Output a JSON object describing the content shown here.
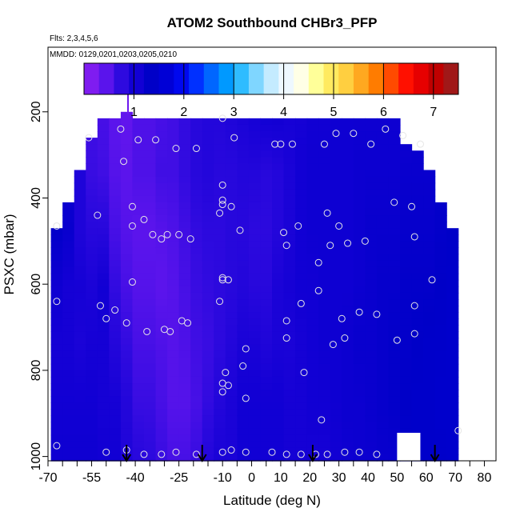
{
  "chart_data": {
    "type": "heatmap",
    "title": "ATOM2 Southbound CHBr3_PFP",
    "annotations": [
      "Flts: 2,3,4,5,6",
      "MMDD: 0129,0201,0203,0205,0210"
    ],
    "xlabel": "Latitude (deg N)",
    "ylabel": "PSXC (mbar)",
    "xlim": [
      -70,
      84
    ],
    "ylim": [
      1010,
      50
    ],
    "x_ticks": [
      -70,
      -55,
      -40,
      -25,
      -10,
      0,
      10,
      20,
      30,
      40,
      50,
      60,
      70,
      80
    ],
    "x_tick_labels": [
      "-70",
      "-55",
      "-40",
      "-25",
      "-10",
      "0",
      "10",
      "20",
      "30",
      "40",
      "50",
      "60",
      "70",
      "80"
    ],
    "x_minor_ticks": [
      -65,
      -60,
      -50,
      -45,
      -35,
      -30,
      -20,
      -15,
      -5,
      5,
      15,
      25,
      35,
      45,
      55,
      65,
      75
    ],
    "y_ticks": [
      200,
      400,
      600,
      800,
      1000
    ],
    "y_tick_labels": [
      "200",
      "400",
      "600",
      "800",
      "1000"
    ],
    "colorbar": {
      "range": [
        0,
        7.5
      ],
      "ticks": [
        1,
        2,
        3,
        4,
        5,
        6,
        7
      ],
      "tick_labels": [
        "1",
        "2",
        "3",
        "4",
        "5",
        "6",
        "7"
      ],
      "colors": [
        "#7f1cf0",
        "#5a14ec",
        "#2e0adf",
        "#1200d4",
        "#0000c8",
        "#0000d6",
        "#0008ee",
        "#0030ff",
        "#0066ff",
        "#0099ff",
        "#2fbcff",
        "#7fd6ff",
        "#c4ebff",
        "#eef8ff",
        "#ffffe6",
        "#ffff99",
        "#ffea60",
        "#ffcf40",
        "#ffa820",
        "#ff7c00",
        "#ff4a00",
        "#ff1000",
        "#e60000",
        "#c00000",
        "#a01818"
      ]
    },
    "profiles": [
      {
        "lat": -67,
        "top": 465,
        "values": [
          1.3,
          1.1,
          1.2,
          1.0,
          0.9,
          0.95,
          1.0
        ]
      },
      {
        "lat": -63,
        "top": 400,
        "values": [
          1.2,
          1.0,
          1.1,
          0.9,
          0.9,
          0.95,
          1.0
        ]
      },
      {
        "lat": -59,
        "top": 330,
        "values": [
          1.1,
          0.8,
          0.8,
          0.9,
          0.85,
          0.95,
          1.0
        ]
      },
      {
        "lat": -55,
        "top": 255,
        "values": [
          0.5,
          0.55,
          0.7,
          0.85,
          0.9,
          0.95,
          1.0
        ]
      },
      {
        "lat": -51,
        "top": 215,
        "values": [
          0.45,
          0.5,
          0.7,
          0.95,
          0.9,
          0.9,
          0.95
        ]
      },
      {
        "lat": -47,
        "top": 215,
        "values": [
          0.3,
          0.35,
          0.45,
          0.6,
          0.75,
          0.9,
          0.95
        ]
      },
      {
        "lat": -43,
        "top": 200,
        "values": [
          0.25,
          0.3,
          0.35,
          0.45,
          0.6,
          0.75,
          0.8
        ]
      },
      {
        "lat": -39,
        "top": 215,
        "values": [
          0.4,
          0.4,
          0.3,
          0.35,
          0.45,
          0.55,
          0.7
        ]
      },
      {
        "lat": -35,
        "top": 215,
        "values": [
          0.4,
          0.4,
          0.3,
          0.35,
          0.45,
          0.55,
          0.65
        ]
      },
      {
        "lat": -31,
        "top": 215,
        "values": [
          0.45,
          0.5,
          0.35,
          0.3,
          0.4,
          0.45,
          0.55
        ]
      },
      {
        "lat": -27,
        "top": 215,
        "values": [
          0.5,
          0.5,
          0.4,
          0.35,
          0.35,
          0.35,
          0.45
        ]
      },
      {
        "lat": -23,
        "top": 215,
        "values": [
          0.6,
          0.6,
          0.5,
          0.45,
          0.4,
          0.35,
          0.45
        ]
      },
      {
        "lat": -19,
        "top": 215,
        "values": [
          0.7,
          0.7,
          0.6,
          0.55,
          0.5,
          0.45,
          0.55
        ]
      },
      {
        "lat": -15,
        "top": 215,
        "values": [
          0.75,
          0.75,
          0.65,
          0.6,
          0.55,
          0.6,
          0.75
        ]
      },
      {
        "lat": -11,
        "top": 215,
        "values": [
          0.75,
          0.7,
          0.65,
          0.65,
          0.65,
          0.75,
          0.85
        ]
      },
      {
        "lat": -7,
        "top": 215,
        "values": [
          0.8,
          0.7,
          0.7,
          0.7,
          0.75,
          0.85,
          0.85
        ]
      },
      {
        "lat": -3,
        "top": 215,
        "values": [
          0.85,
          0.75,
          0.7,
          0.75,
          0.85,
          0.95,
          0.95
        ]
      },
      {
        "lat": 1,
        "top": 215,
        "values": [
          0.9,
          0.75,
          0.65,
          0.7,
          0.85,
          0.95,
          0.95
        ]
      },
      {
        "lat": 5,
        "top": 215,
        "values": [
          0.95,
          0.7,
          0.65,
          0.7,
          0.8,
          0.95,
          0.95
        ]
      },
      {
        "lat": 9,
        "top": 215,
        "values": [
          0.95,
          0.75,
          0.75,
          0.85,
          0.85,
          0.95,
          0.95
        ]
      },
      {
        "lat": 13,
        "top": 215,
        "values": [
          0.9,
          0.85,
          0.85,
          0.9,
          0.85,
          0.9,
          0.9
        ]
      },
      {
        "lat": 17,
        "top": 215,
        "values": [
          0.9,
          0.95,
          0.95,
          0.95,
          0.9,
          0.9,
          0.9
        ]
      },
      {
        "lat": 21,
        "top": 215,
        "values": [
          0.95,
          1.0,
          1.0,
          0.95,
          0.95,
          0.95,
          0.9
        ]
      },
      {
        "lat": 25,
        "top": 215,
        "values": [
          0.95,
          1.0,
          1.0,
          1.0,
          1.0,
          0.95,
          0.9
        ]
      },
      {
        "lat": 29,
        "top": 215,
        "values": [
          1.0,
          1.0,
          1.0,
          1.0,
          1.0,
          1.0,
          0.95
        ]
      },
      {
        "lat": 33,
        "top": 215,
        "values": [
          1.0,
          1.0,
          1.0,
          1.0,
          1.05,
          1.05,
          1.0
        ]
      },
      {
        "lat": 37,
        "top": 215,
        "values": [
          1.0,
          1.05,
          1.05,
          1.05,
          1.1,
          1.05,
          1.05
        ]
      },
      {
        "lat": 41,
        "top": 215,
        "values": [
          1.0,
          1.05,
          1.1,
          1.1,
          1.1,
          1.1,
          1.05
        ]
      },
      {
        "lat": 45,
        "top": 215,
        "values": [
          1.0,
          1.05,
          1.1,
          1.15,
          1.15,
          1.15,
          1.1
        ]
      },
      {
        "lat": 49,
        "top": 215,
        "values": [
          1.0,
          1.05,
          1.1,
          1.15,
          1.2,
          1.2,
          1.1
        ]
      },
      {
        "lat": 53,
        "top": 265,
        "values": [
          1.0,
          1.1,
          1.15,
          1.2,
          1.2,
          1.25,
          1.2
        ]
      },
      {
        "lat": 57,
        "top": 280,
        "values": [
          1.1,
          1.1,
          1.15,
          1.2,
          1.25,
          1.3,
          1.3
        ]
      },
      {
        "lat": 61,
        "top": 330,
        "values": [
          1.1,
          1.1,
          1.15,
          1.2,
          1.3,
          1.3,
          1.3
        ]
      },
      {
        "lat": 65,
        "top": 400,
        "values": [
          1.2,
          1.2,
          1.2,
          1.25,
          1.3,
          1.35,
          1.3
        ]
      },
      {
        "lat": 69,
        "top": 465,
        "values": [
          1.2,
          1.2,
          1.25,
          1.3,
          1.35,
          1.35,
          1.35
        ]
      }
    ],
    "missing_region": {
      "lat": [
        50,
        58
      ],
      "p": [
        945,
        1010
      ]
    },
    "spike": {
      "lat": -42.5,
      "p": [
        155,
        205
      ],
      "value": 0.15
    },
    "sample_points": [
      {
        "lat": -67,
        "p": 465
      },
      {
        "lat": -67,
        "p": 640
      },
      {
        "lat": -67,
        "p": 975
      },
      {
        "lat": -56,
        "p": 260
      },
      {
        "lat": -53,
        "p": 440
      },
      {
        "lat": -52,
        "p": 650
      },
      {
        "lat": -50,
        "p": 680
      },
      {
        "lat": -47,
        "p": 660
      },
      {
        "lat": -45,
        "p": 240
      },
      {
        "lat": -44,
        "p": 315
      },
      {
        "lat": -43,
        "p": 690
      },
      {
        "lat": -41,
        "p": 420
      },
      {
        "lat": -41,
        "p": 465
      },
      {
        "lat": -41,
        "p": 595
      },
      {
        "lat": -39,
        "p": 265
      },
      {
        "lat": -37,
        "p": 450
      },
      {
        "lat": -36,
        "p": 710
      },
      {
        "lat": -34,
        "p": 485
      },
      {
        "lat": -33,
        "p": 265
      },
      {
        "lat": -31,
        "p": 495
      },
      {
        "lat": -30,
        "p": 705
      },
      {
        "lat": -29,
        "p": 485
      },
      {
        "lat": -28,
        "p": 710
      },
      {
        "lat": -26,
        "p": 285
      },
      {
        "lat": -25,
        "p": 485
      },
      {
        "lat": -24,
        "p": 685
      },
      {
        "lat": -22,
        "p": 690
      },
      {
        "lat": -21,
        "p": 495
      },
      {
        "lat": -19,
        "p": 285
      },
      {
        "lat": -11,
        "p": 640
      },
      {
        "lat": -11,
        "p": 435
      },
      {
        "lat": -10,
        "p": 215
      },
      {
        "lat": -10,
        "p": 370
      },
      {
        "lat": -10,
        "p": 405
      },
      {
        "lat": -10,
        "p": 415
      },
      {
        "lat": -10,
        "p": 585
      },
      {
        "lat": -10,
        "p": 590
      },
      {
        "lat": -10,
        "p": 830
      },
      {
        "lat": -10,
        "p": 850
      },
      {
        "lat": -9,
        "p": 805
      },
      {
        "lat": -8,
        "p": 590
      },
      {
        "lat": -8,
        "p": 835
      },
      {
        "lat": -7,
        "p": 420
      },
      {
        "lat": -6,
        "p": 260
      },
      {
        "lat": -4,
        "p": 475
      },
      {
        "lat": -3,
        "p": 790
      },
      {
        "lat": -2,
        "p": 750
      },
      {
        "lat": -2,
        "p": 865
      },
      {
        "lat": 8,
        "p": 275
      },
      {
        "lat": 10,
        "p": 275
      },
      {
        "lat": 11,
        "p": 480
      },
      {
        "lat": 12,
        "p": 685
      },
      {
        "lat": 12,
        "p": 725
      },
      {
        "lat": 12,
        "p": 510
      },
      {
        "lat": 14,
        "p": 275
      },
      {
        "lat": 16,
        "p": 465
      },
      {
        "lat": 17,
        "p": 645
      },
      {
        "lat": 18,
        "p": 805
      },
      {
        "lat": 23,
        "p": 550
      },
      {
        "lat": 23,
        "p": 615
      },
      {
        "lat": 24,
        "p": 915
      },
      {
        "lat": 25,
        "p": 275
      },
      {
        "lat": 26,
        "p": 435
      },
      {
        "lat": 27,
        "p": 510
      },
      {
        "lat": 28,
        "p": 740
      },
      {
        "lat": 29,
        "p": 250
      },
      {
        "lat": 30,
        "p": 465
      },
      {
        "lat": 31,
        "p": 680
      },
      {
        "lat": 32,
        "p": 725
      },
      {
        "lat": 33,
        "p": 505
      },
      {
        "lat": 35,
        "p": 250
      },
      {
        "lat": 37,
        "p": 665
      },
      {
        "lat": 39,
        "p": 500
      },
      {
        "lat": 41,
        "p": 275
      },
      {
        "lat": 43,
        "p": 670
      },
      {
        "lat": 46,
        "p": 240
      },
      {
        "lat": 49,
        "p": 410
      },
      {
        "lat": 50,
        "p": 730
      },
      {
        "lat": 52,
        "p": 255
      },
      {
        "lat": 55,
        "p": 420
      },
      {
        "lat": 56,
        "p": 650
      },
      {
        "lat": 56,
        "p": 715
      },
      {
        "lat": 56,
        "p": 490
      },
      {
        "lat": 58,
        "p": 275
      },
      {
        "lat": 62,
        "p": 590
      },
      {
        "lat": 71,
        "p": 940
      },
      {
        "lat": -50,
        "p": 990
      },
      {
        "lat": -43,
        "p": 985
      },
      {
        "lat": -37,
        "p": 995
      },
      {
        "lat": -31,
        "p": 995
      },
      {
        "lat": -26,
        "p": 990
      },
      {
        "lat": -19,
        "p": 995
      },
      {
        "lat": -10,
        "p": 990
      },
      {
        "lat": -7,
        "p": 985
      },
      {
        "lat": -2,
        "p": 990
      },
      {
        "lat": 7,
        "p": 990
      },
      {
        "lat": 12,
        "p": 995
      },
      {
        "lat": 17,
        "p": 995
      },
      {
        "lat": 22,
        "p": 995
      },
      {
        "lat": 26,
        "p": 995
      },
      {
        "lat": 32,
        "p": 990
      },
      {
        "lat": 37,
        "p": 990
      },
      {
        "lat": 43,
        "p": 995
      }
    ],
    "arrows": [
      {
        "lat": -43
      },
      {
        "lat": -17
      },
      {
        "lat": 21
      },
      {
        "lat": 63
      }
    ]
  }
}
